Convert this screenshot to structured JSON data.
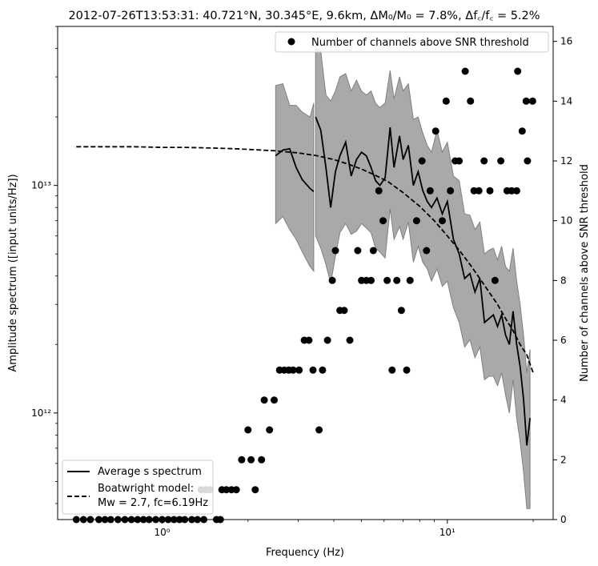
{
  "chart_data": {
    "type": "line",
    "title": "2012-07-26T13:53:31: 40.721°N, 30.345°E, 9.6km, ΔM₀/M₀ = 7.8%, Δf꜀/f꜀ = 5.2%",
    "xlabel": "Frequency (Hz)",
    "ylabel_left": "Amplitude spectrum ([input units/Hz])",
    "ylabel_right": "Number of channels above SNR threshold",
    "x_scale": "log",
    "y_left_scale": "log",
    "xlim": [
      0.43,
      23.5
    ],
    "ylim_left": [
      340000000000.0,
      50000000000000.0
    ],
    "ylim_right": [
      0,
      16.5
    ],
    "x_ticks": [
      {
        "value": 1,
        "label": "10⁰"
      },
      {
        "value": 10,
        "label": "10¹"
      }
    ],
    "y_left_ticks": [
      {
        "value": 1000000000000.0,
        "label": "10¹²"
      },
      {
        "value": 10000000000000.0,
        "label": "10¹³"
      }
    ],
    "y_right_ticks": [
      0,
      2,
      4,
      6,
      8,
      10,
      12,
      14,
      16
    ],
    "legend_top": {
      "position": "top-right",
      "entries": [
        {
          "label": "Number of channels above SNR threshold",
          "marker": "dot"
        }
      ]
    },
    "legend_bottom": {
      "position": "bottom-left",
      "entries": [
        {
          "label": "Average s spectrum",
          "style": "solid"
        },
        {
          "label_line1": "Boatwright model:",
          "label_line2": "Mw = 2.7, fc=6.19Hz",
          "style": "dashed"
        }
      ]
    },
    "series": [
      {
        "name": "Average s spectrum",
        "segments": [
          {
            "x": [
              2.5,
              2.65,
              2.8,
              2.95,
              3.1,
              3.3,
              3.4
            ],
            "y": [
              13500000000000.0,
              14300000000000.0,
              14500000000000.0,
              12000000000000.0,
              10600000000000.0,
              9700000000000.0,
              9400000000000.0
            ],
            "lower": [
              6800000000000.0,
              7300000000000.0,
              6400000000000.0,
              5800000000000.0,
              5100000000000.0,
              4400000000000.0,
              4200000000000.0
            ],
            "upper": [
              27500000000000.0,
              28000000000000.0,
              22500000000000.0,
              22500000000000.0,
              21000000000000.0,
              20000000000000.0,
              23000000000000.0
            ]
          },
          {
            "x": [
              3.45,
              3.6,
              3.75,
              3.9,
              4.05,
              4.2,
              4.4,
              4.6,
              4.8,
              5.0,
              5.2,
              5.4,
              5.6,
              5.8,
              6.05,
              6.3,
              6.5,
              6.8,
              7.0,
              7.3,
              7.6,
              7.9,
              8.2,
              8.5,
              8.8,
              9.2,
              9.6,
              10.0,
              10.5,
              11.0,
              11.5,
              12.0,
              12.5,
              13.0,
              13.5,
              14.0,
              14.5,
              15.0,
              15.5,
              16.0,
              16.5,
              17.0,
              17.5,
              18.0,
              18.5,
              19.0,
              19.5
            ],
            "y": [
              20000000000000.0,
              17500000000000.0,
              12000000000000.0,
              8000000000000.0,
              11500000000000.0,
              13500000000000.0,
              15500000000000.0,
              11000000000000.0,
              13000000000000.0,
              14000000000000.0,
              13500000000000.0,
              12000000000000.0,
              10500000000000.0,
              10000000000000.0,
              10800000000000.0,
              18000000000000.0,
              12000000000000.0,
              16500000000000.0,
              13000000000000.0,
              15000000000000.0,
              10000000000000.0,
              11500000000000.0,
              9500000000000.0,
              8500000000000.0,
              8000000000000.0,
              8800000000000.0,
              7500000000000.0,
              8500000000000.0,
              5800000000000.0,
              5000000000000.0,
              3900000000000.0,
              4100000000000.0,
              3400000000000.0,
              3900000000000.0,
              2500000000000.0,
              2600000000000.0,
              2700000000000.0,
              2400000000000.0,
              2700000000000.0,
              2200000000000.0,
              2000000000000.0,
              2800000000000.0,
              2000000000000.0,
              1600000000000.0,
              1150000000000.0,
              720000000000.0,
              950000000000.0
            ],
            "lower": [
              6000000000000.0,
              5300000000000.0,
              4500000000000.0,
              3700000000000.0,
              4900000000000.0,
              6200000000000.0,
              6800000000000.0,
              6100000000000.0,
              6300000000000.0,
              6800000000000.0,
              6500000000000.0,
              6200000000000.0,
              5300000000000.0,
              5100000000000.0,
              4800000000000.0,
              7900000000000.0,
              5800000000000.0,
              6600000000000.0,
              5800000000000.0,
              6900000000000.0,
              4600000000000.0,
              5400000000000.0,
              4600000000000.0,
              4300000000000.0,
              3800000000000.0,
              4300000000000.0,
              3600000000000.0,
              3800000000000.0,
              2900000000000.0,
              2500000000000.0,
              1950000000000.0,
              2100000000000.0,
              1750000000000.0,
              1950000000000.0,
              1400000000000.0,
              1450000000000.0,
              1450000000000.0,
              1320000000000.0,
              1500000000000.0,
              1200000000000.0,
              1000000000000.0,
              1400000000000.0,
              950000000000.0,
              750000000000.0,
              550000000000.0,
              380000000000.0,
              380000000000.0
            ],
            "upper": [
              40000000000000.0,
              39000000000000.0,
              25000000000000.0,
              23500000000000.0,
              26000000000000.0,
              30000000000000.0,
              31000000000000.0,
              26000000000000.0,
              29000000000000.0,
              26000000000000.0,
              25000000000000.0,
              26000000000000.0,
              23000000000000.0,
              22000000000000.0,
              23000000000000.0,
              32000000000000.0,
              24000000000000.0,
              30000000000000.0,
              26000000000000.0,
              28000000000000.0,
              19500000000000.0,
              20000000000000.0,
              17000000000000.0,
              15000000000000.0,
              14000000000000.0,
              17500000000000.0,
              14000000000000.0,
              15500000000000.0,
              11000000000000.0,
              10500000000000.0,
              7500000000000.0,
              7400000000000.0,
              6400000000000.0,
              6900000000000.0,
              5000000000000.0,
              5200000000000.0,
              5300000000000.0,
              4700000000000.0,
              5400000000000.0,
              4400000000000.0,
              4200000000000.0,
              5300000000000.0,
              3800000000000.0,
              3000000000000.0,
              2200000000000.0,
              1500000000000.0,
              1900000000000.0
            ]
          }
        ]
      },
      {
        "name": "Boatwright model",
        "x": [
          0.5,
          0.6,
          0.7,
          0.8,
          1.0,
          1.2,
          1.5,
          1.8,
          2.0,
          2.5,
          3.0,
          3.5,
          4.0,
          4.5,
          5.0,
          5.5,
          6.19,
          7.0,
          8.0,
          9.0,
          10.0,
          11.0,
          12.0,
          13.0,
          14.0,
          15.0,
          16.0,
          17.0,
          18.0,
          19.0,
          20.0
        ],
        "y": [
          14800000000000.0,
          14800000000000.0,
          14800000000000.0,
          14800000000000.0,
          14700000000000.0,
          14700000000000.0,
          14600000000000.0,
          14500000000000.0,
          14400000000000.0,
          14200000000000.0,
          13900000000000.0,
          13500000000000.0,
          13000000000000.0,
          12400000000000.0,
          11800000000000.0,
          11200000000000.0,
          10400000000000.0,
          9300000000000.0,
          8100000000000.0,
          7000000000000.0,
          6000000000000.0,
          5200000000000.0,
          4500000000000.0,
          3900000000000.0,
          3400000000000.0,
          3000000000000.0,
          2600000000000.0,
          2300000000000.0,
          2000000000000.0,
          1800000000000.0,
          1500000000000.0
        ]
      },
      {
        "name": "Number of channels above SNR threshold",
        "axis": "right",
        "points": [
          [
            0.5,
            0
          ],
          [
            0.53,
            0
          ],
          [
            0.56,
            0
          ],
          [
            0.6,
            0
          ],
          [
            0.63,
            0
          ],
          [
            0.66,
            0
          ],
          [
            0.7,
            0
          ],
          [
            0.74,
            0
          ],
          [
            0.78,
            0
          ],
          [
            0.82,
            0
          ],
          [
            0.86,
            0
          ],
          [
            0.9,
            0
          ],
          [
            0.95,
            0
          ],
          [
            1.0,
            0
          ],
          [
            1.05,
            0
          ],
          [
            1.1,
            0
          ],
          [
            1.15,
            0
          ],
          [
            1.2,
            0
          ],
          [
            1.27,
            0
          ],
          [
            1.33,
            0
          ],
          [
            1.4,
            0
          ],
          [
            1.55,
            0
          ],
          [
            1.6,
            0
          ],
          [
            1.37,
            1
          ],
          [
            1.42,
            1
          ],
          [
            1.47,
            1
          ],
          [
            1.62,
            1
          ],
          [
            1.68,
            1
          ],
          [
            1.75,
            1
          ],
          [
            1.82,
            1
          ],
          [
            2.12,
            1
          ],
          [
            1.9,
            2
          ],
          [
            2.05,
            2
          ],
          [
            2.23,
            2
          ],
          [
            2.0,
            3
          ],
          [
            2.38,
            3
          ],
          [
            3.55,
            3
          ],
          [
            2.28,
            4
          ],
          [
            2.47,
            4
          ],
          [
            2.58,
            5
          ],
          [
            2.68,
            5
          ],
          [
            2.78,
            5
          ],
          [
            2.88,
            5
          ],
          [
            3.02,
            5
          ],
          [
            3.38,
            5
          ],
          [
            3.65,
            5
          ],
          [
            6.4,
            5
          ],
          [
            7.2,
            5
          ],
          [
            3.15,
            6
          ],
          [
            3.27,
            6
          ],
          [
            3.8,
            6
          ],
          [
            4.55,
            6
          ],
          [
            4.2,
            7
          ],
          [
            4.35,
            7
          ],
          [
            6.9,
            7
          ],
          [
            3.95,
            8
          ],
          [
            5.0,
            8
          ],
          [
            5.2,
            8
          ],
          [
            5.4,
            8
          ],
          [
            6.15,
            8
          ],
          [
            6.65,
            8
          ],
          [
            7.4,
            8
          ],
          [
            14.7,
            8
          ],
          [
            4.05,
            9
          ],
          [
            4.85,
            9
          ],
          [
            5.5,
            9
          ],
          [
            8.45,
            9
          ],
          [
            5.95,
            10
          ],
          [
            7.8,
            10
          ],
          [
            9.6,
            10
          ],
          [
            5.75,
            11
          ],
          [
            8.7,
            11
          ],
          [
            10.25,
            11
          ],
          [
            12.4,
            11
          ],
          [
            12.9,
            11
          ],
          [
            14.1,
            11
          ],
          [
            16.2,
            11
          ],
          [
            16.8,
            11
          ],
          [
            17.5,
            11
          ],
          [
            8.15,
            12
          ],
          [
            10.65,
            12
          ],
          [
            11.0,
            12
          ],
          [
            13.45,
            12
          ],
          [
            15.4,
            12
          ],
          [
            19.1,
            12
          ],
          [
            9.1,
            13
          ],
          [
            18.3,
            13
          ],
          [
            9.9,
            14
          ],
          [
            12.05,
            14
          ],
          [
            18.9,
            14
          ],
          [
            19.9,
            14
          ],
          [
            11.55,
            15
          ],
          [
            17.65,
            15
          ]
        ]
      }
    ]
  }
}
